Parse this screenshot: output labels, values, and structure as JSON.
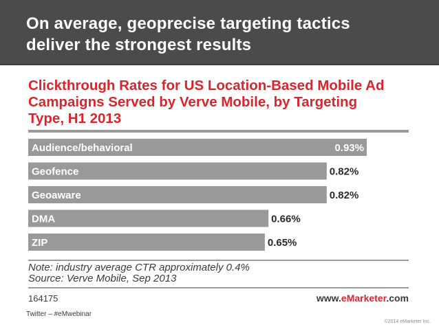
{
  "banner": {
    "title_line1": "On average, geoprecise targeting tactics",
    "title_line2": "deliver the strongest results"
  },
  "chart_data": {
    "type": "bar",
    "orientation": "horizontal",
    "title_line1": "Clickthrough Rates for US Location-Based Mobile Ad",
    "title_line2": "Campaigns Served by Verve Mobile, by Targeting",
    "title_line3": "Type, H1 2013",
    "categories": [
      "Audience/behavioral",
      "Geofence",
      "Geoaware",
      "DMA",
      "ZIP"
    ],
    "values": [
      0.93,
      0.82,
      0.82,
      0.66,
      0.65
    ],
    "value_labels": [
      "0.93%",
      "0.82%",
      "0.82%",
      "0.66%",
      "0.65%"
    ],
    "unit": "%",
    "xlim": [
      0,
      0.93
    ],
    "grid": false,
    "legend": "none",
    "bar_color": "#999999",
    "note": "Note: industry average CTR approximately 0.4%",
    "source": "Source: Verve Mobile, Sep 2013",
    "chart_id": "164175"
  },
  "brand": {
    "prefix": "www.",
    "name": "eMarketer",
    "suffix": ".com",
    "accent_color": "#d7262e"
  },
  "footer": {
    "left": "Twitter – #eMwebinar",
    "right": "©2014 eMarketer Inc."
  }
}
